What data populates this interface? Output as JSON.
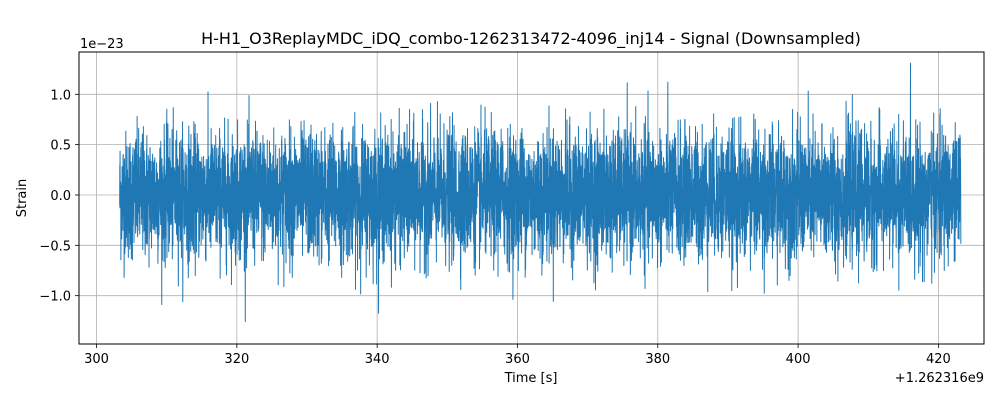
{
  "chart_data": {
    "type": "line",
    "title": "H-H1_O3ReplayMDC_iDQ_combo-1262313472-4096_inj14 - Signal (Downsampled)",
    "xlabel": "Time [s]",
    "ylabel": "Strain",
    "x_offset_label": "+1.262316e9",
    "y_scale_label": "1e−23",
    "xlim": [
      297.5,
      426.5
    ],
    "ylim": [
      -1.48,
      1.42
    ],
    "x_ticks": [
      300,
      320,
      340,
      360,
      380,
      400,
      420
    ],
    "x_tick_labels": [
      "300",
      "320",
      "340",
      "360",
      "380",
      "400",
      "420"
    ],
    "y_ticks": [
      -1.0,
      -0.5,
      0.0,
      0.5,
      1.0
    ],
    "y_tick_labels": [
      "−1.0",
      "−0.5",
      "0.0",
      "0.5",
      "1.0"
    ],
    "grid": true,
    "series": [
      {
        "color": "#1f77b4",
        "x_start": 303.3,
        "x_end": 423.2,
        "typical_range": [
          -0.5,
          0.5
        ],
        "min": -1.32,
        "max": 1.31
      }
    ]
  }
}
